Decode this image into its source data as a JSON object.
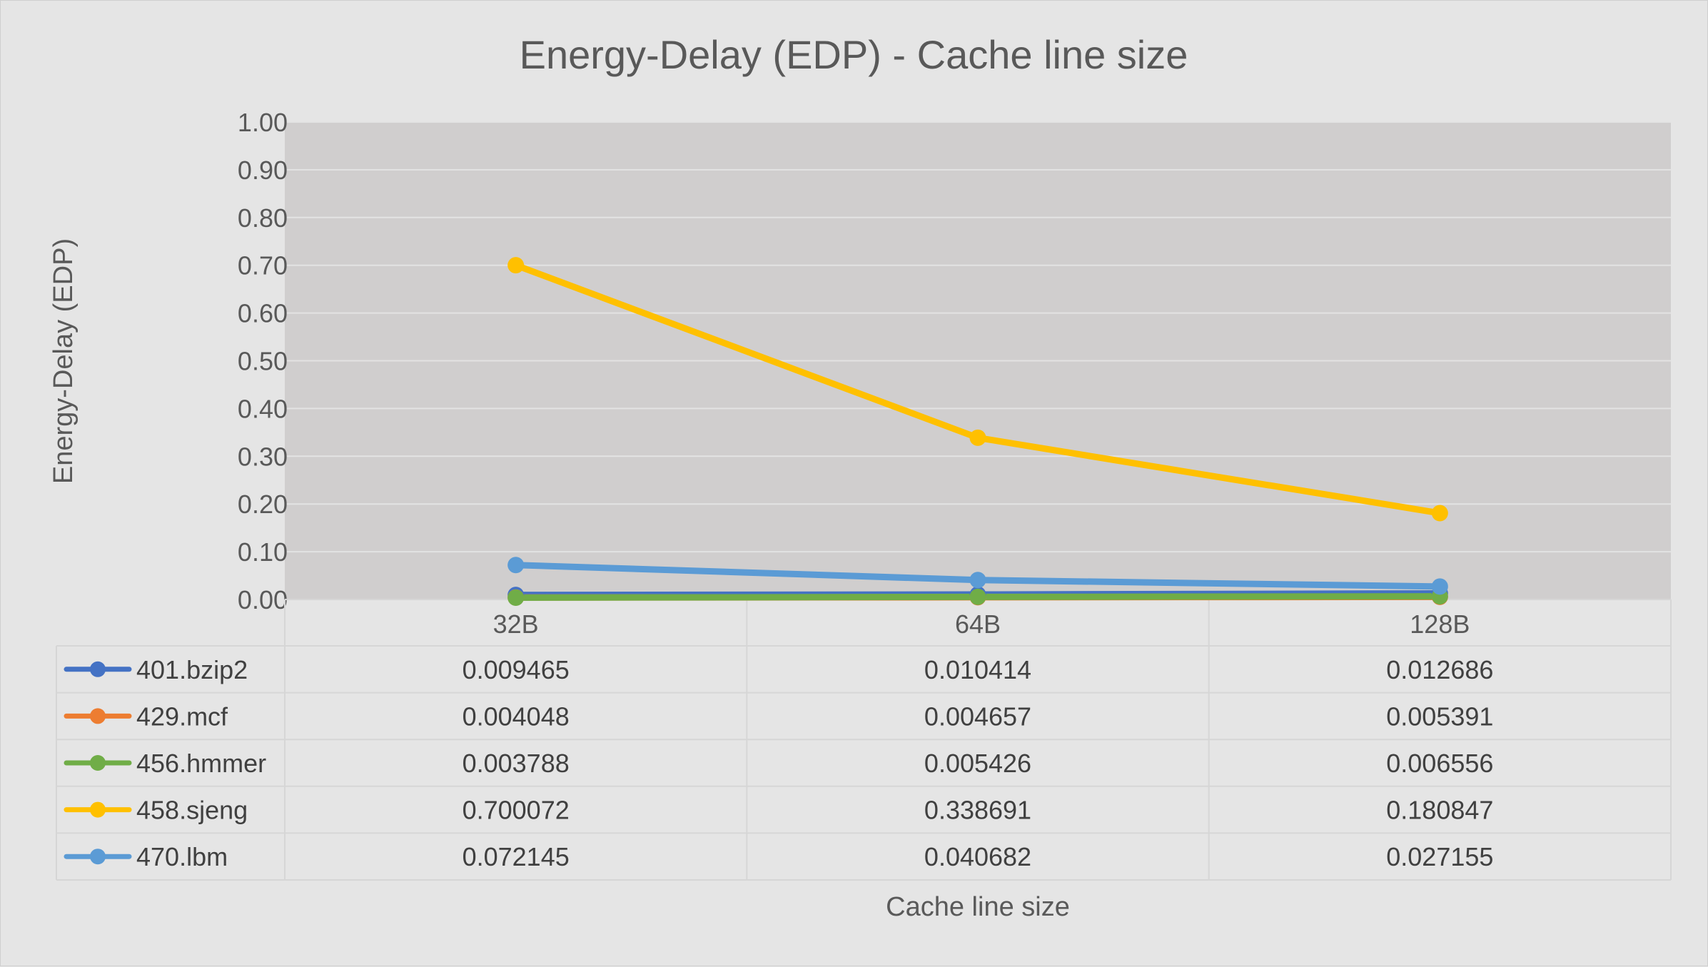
{
  "chart_data": {
    "type": "line",
    "title": "Energy-Delay (EDP) - Cache line size",
    "xlabel": "Cache line size",
    "ylabel": "Energy-Delay (EDP)",
    "categories": [
      "32B",
      "64B",
      "128B"
    ],
    "ylim": [
      0,
      1
    ],
    "yticks": [
      "0.00",
      "0.10",
      "0.20",
      "0.30",
      "0.40",
      "0.50",
      "0.60",
      "0.70",
      "0.80",
      "0.90",
      "1.00"
    ],
    "grid": true,
    "legend": "data-table",
    "series": [
      {
        "name": "401.bzip2",
        "color": "#4472c4",
        "values": [
          0.009465,
          0.010414,
          0.012686
        ],
        "labels": [
          "0.009465",
          "0.010414",
          "0.012686"
        ]
      },
      {
        "name": "429.mcf",
        "color": "#ed7d31",
        "values": [
          0.004048,
          0.004657,
          0.005391
        ],
        "labels": [
          "0.004048",
          "0.004657",
          "0.005391"
        ]
      },
      {
        "name": "456.hmmer",
        "color": "#70ad47",
        "values": [
          0.003788,
          0.005426,
          0.006556
        ],
        "labels": [
          "0.003788",
          "0.005426",
          "0.006556"
        ]
      },
      {
        "name": "458.sjeng",
        "color": "#ffc000",
        "values": [
          0.700072,
          0.338691,
          0.180847
        ],
        "labels": [
          "0.700072",
          "0.338691",
          "0.180847"
        ]
      },
      {
        "name": "470.lbm",
        "color": "#5b9bd5",
        "values": [
          0.072145,
          0.040682,
          0.027155
        ],
        "labels": [
          "0.072145",
          "0.040682",
          "0.027155"
        ]
      }
    ]
  }
}
